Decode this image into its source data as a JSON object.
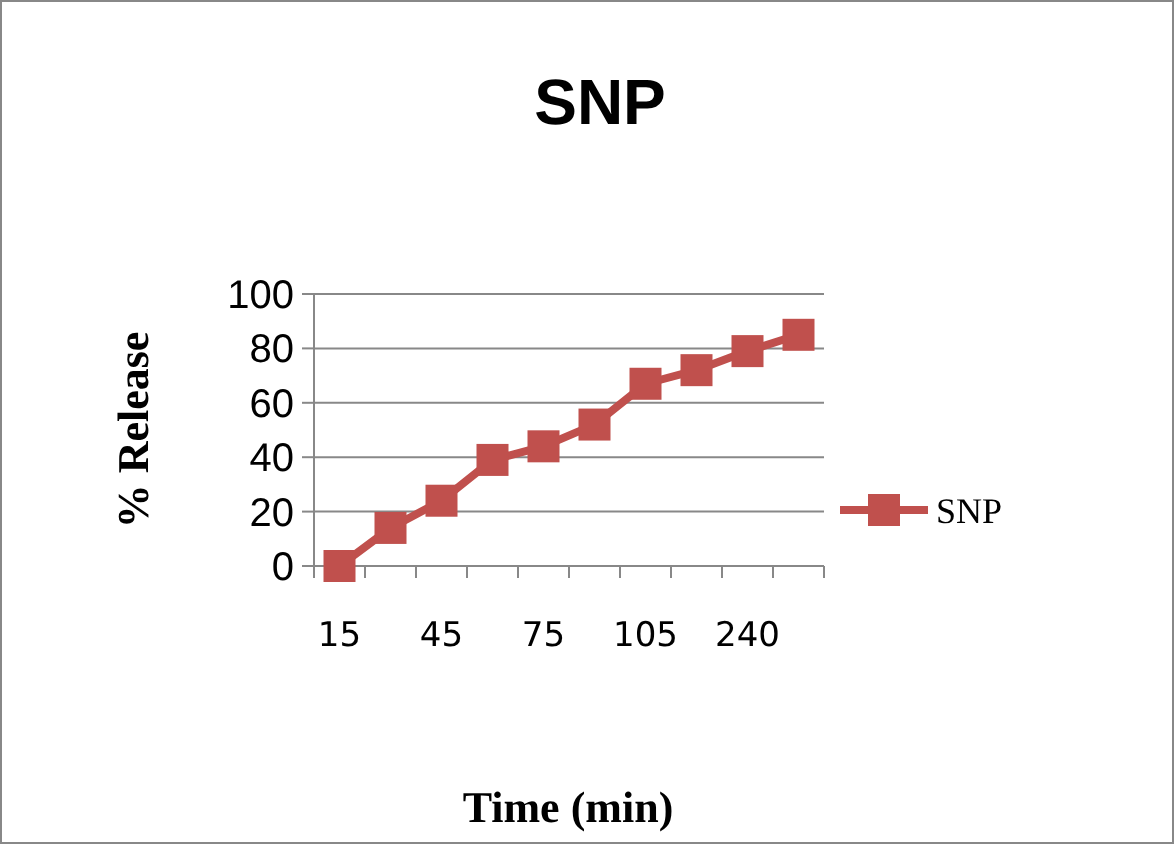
{
  "chart_data": {
    "type": "line",
    "title": "SNP",
    "xlabel": "Time (min)",
    "ylabel": "% Release",
    "categories": [
      "15",
      null,
      "45",
      null,
      "75",
      null,
      "105",
      null,
      "240",
      null
    ],
    "series": [
      {
        "name": "SNP",
        "color": "#c0504d",
        "values": [
          0,
          14,
          24,
          39,
          44,
          52,
          67,
          72,
          79,
          85
        ]
      }
    ],
    "ylim": [
      0,
      100
    ],
    "yticks": [
      0,
      20,
      40,
      60,
      80,
      100
    ],
    "grid": "y",
    "legend": "right",
    "marker": "square",
    "line_style": "solid"
  }
}
